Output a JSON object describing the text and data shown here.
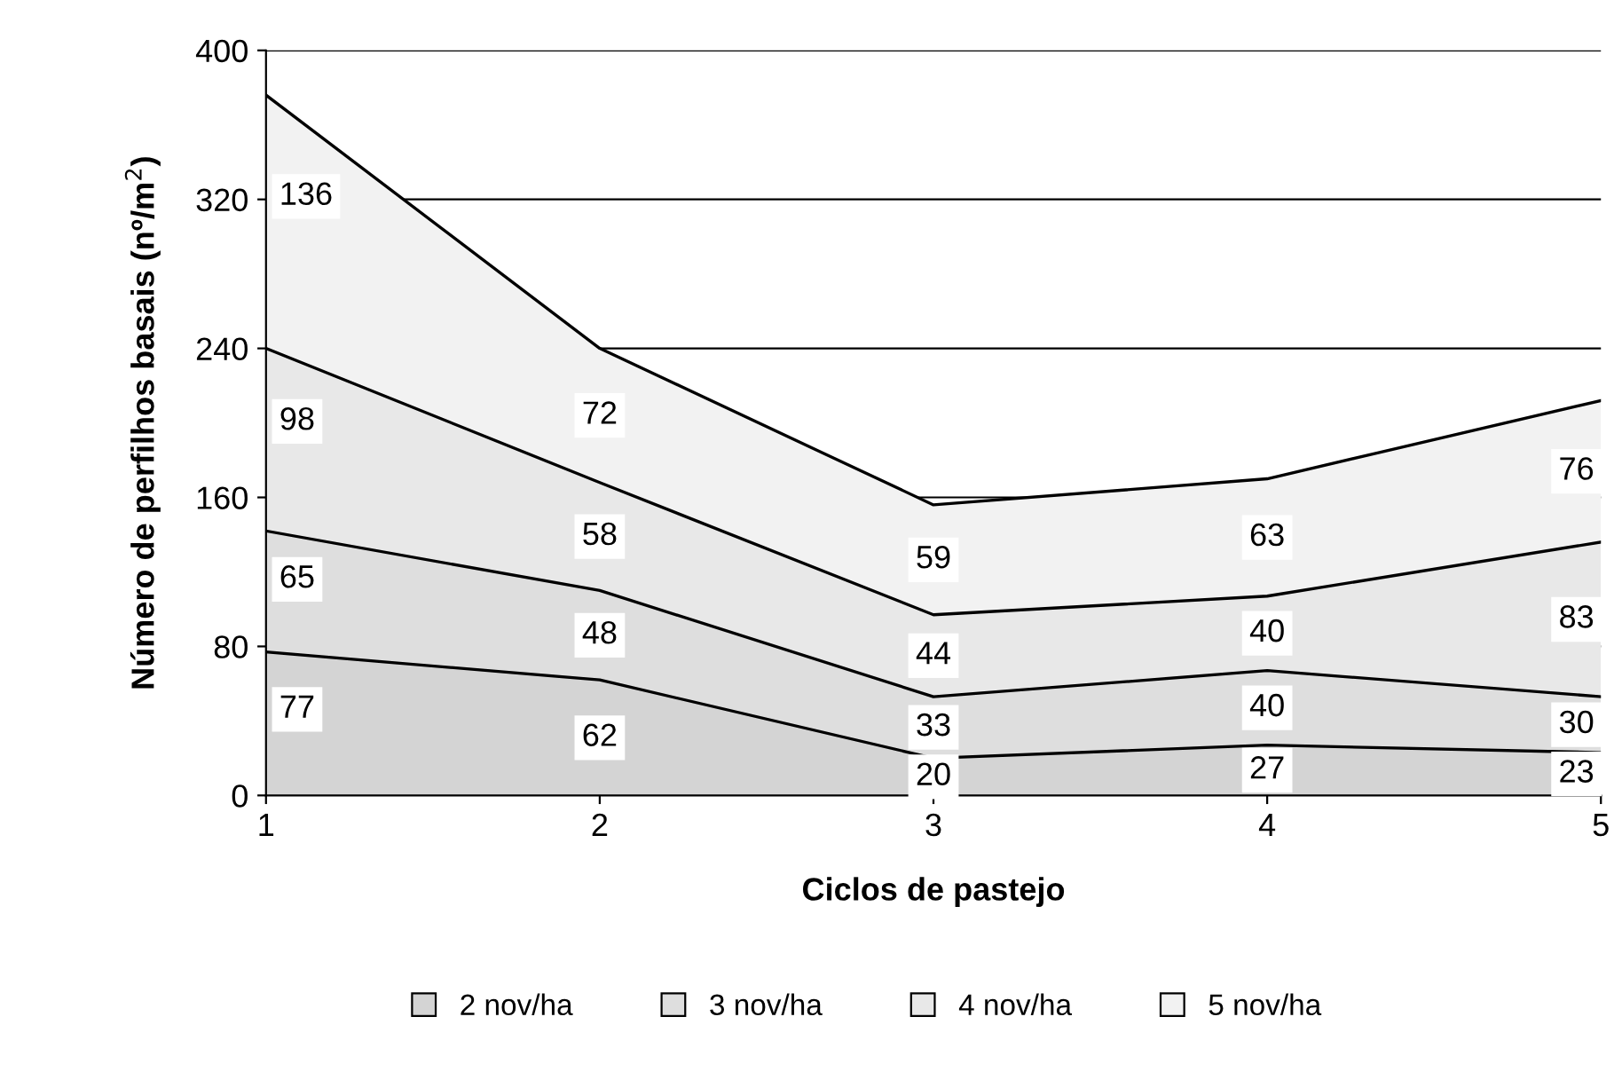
{
  "chart_data": {
    "type": "area",
    "stacked": true,
    "xlabel": "Ciclos de pastejo",
    "ylabel": "Número de perfilhos basais (nº/m$^{2}$)",
    "x": [
      1,
      2,
      3,
      4,
      5
    ],
    "xlim": [
      1,
      5
    ],
    "xticks": [
      1,
      2,
      3,
      4,
      5
    ],
    "ylim": [
      0,
      400
    ],
    "yticks": [
      0,
      80,
      160,
      240,
      320,
      400
    ],
    "series": [
      {
        "name": "2 nov/ha",
        "color": "#d4d4d4",
        "values": [
          77,
          62,
          20,
          27,
          23
        ]
      },
      {
        "name": "3 nov/ha",
        "color": "#dedede",
        "values": [
          65,
          48,
          33,
          40,
          30
        ]
      },
      {
        "name": "4 nov/ha",
        "color": "#e8e8e8",
        "values": [
          98,
          58,
          44,
          40,
          83
        ]
      },
      {
        "name": "5 nov/ha",
        "color": "#f2f2f2",
        "values": [
          136,
          72,
          59,
          63,
          76
        ]
      }
    ],
    "data_labels": true,
    "grid": "y",
    "legend": "bottom"
  }
}
